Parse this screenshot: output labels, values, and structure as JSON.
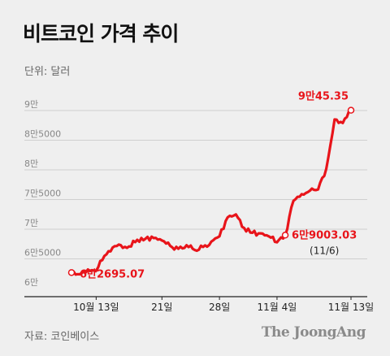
{
  "title": "비트코인 가격 추이",
  "unit_label": "단위: 달러",
  "source": "자료: 코인베이스",
  "brand": "The JoongAng",
  "colors": {
    "line": "#e8141a",
    "annotation": "#e8141a",
    "grid": "#cfcfcf",
    "background": "#efefef"
  },
  "chart_data": {
    "type": "line",
    "title": "비트코인 가격 추이",
    "ylabel": "단위: 달러",
    "ylim": [
      60000,
      90000
    ],
    "y_ticks": [
      {
        "value": 90000,
        "label": "9만"
      },
      {
        "value": 85000,
        "label": "8만5000"
      },
      {
        "value": 80000,
        "label": "8만"
      },
      {
        "value": 75000,
        "label": "7만5000"
      },
      {
        "value": 70000,
        "label": "7만"
      },
      {
        "value": 65000,
        "label": "6만5000"
      },
      {
        "value": 60000,
        "label": "6만"
      }
    ],
    "x_ticks": [
      {
        "date": "2024-10-13",
        "label": "10월 13일"
      },
      {
        "date": "2024-10-21",
        "label": "21일"
      },
      {
        "date": "2024-10-28",
        "label": "28일"
      },
      {
        "date": "2024-11-04",
        "label": "11월 4일"
      },
      {
        "date": "2024-11-13",
        "label": "11월 13일"
      }
    ],
    "xlim": [
      "2024-10-10",
      "2024-11-13"
    ],
    "grid": true,
    "series": [
      {
        "points": [
          [
            "2024-10-10",
            62695.07
          ],
          [
            "2024-10-11",
            62400
          ],
          [
            "2024-10-12",
            63200
          ],
          [
            "2024-10-13",
            63000
          ],
          [
            "2024-10-14",
            65500
          ],
          [
            "2024-10-15",
            66900
          ],
          [
            "2024-10-16",
            67300
          ],
          [
            "2024-10-17",
            67100
          ],
          [
            "2024-10-18",
            68200
          ],
          [
            "2024-10-19",
            68400
          ],
          [
            "2024-10-20",
            68500
          ],
          [
            "2024-10-21",
            68100
          ],
          [
            "2024-10-22",
            67200
          ],
          [
            "2024-10-23",
            66700
          ],
          [
            "2024-10-24",
            67300
          ],
          [
            "2024-10-25",
            66500
          ],
          [
            "2024-10-26",
            67000
          ],
          [
            "2024-10-27",
            67900
          ],
          [
            "2024-10-28",
            68800
          ],
          [
            "2024-10-29",
            72000
          ],
          [
            "2024-10-30",
            72500
          ],
          [
            "2024-10-31",
            70200
          ],
          [
            "2024-11-01",
            69400
          ],
          [
            "2024-11-02",
            69300
          ],
          [
            "2024-11-03",
            68800
          ],
          [
            "2024-11-04",
            67800
          ],
          [
            "2024-11-05",
            69003.03
          ],
          [
            "2024-11-06",
            74800
          ],
          [
            "2024-11-07",
            75900
          ],
          [
            "2024-11-08",
            76500
          ],
          [
            "2024-11-09",
            76700
          ],
          [
            "2024-11-10",
            80200
          ],
          [
            "2024-11-11",
            88500
          ],
          [
            "2024-11-12",
            87900
          ],
          [
            "2024-11-13",
            90045.35
          ]
        ]
      }
    ],
    "annotations": [
      {
        "date": "2024-10-10",
        "value": 62695.07,
        "text": "6만2695.07"
      },
      {
        "date": "2024-11-05",
        "value": 69003.03,
        "text": "6만9003.03",
        "subtext": "(11/6)"
      },
      {
        "date": "2024-11-13",
        "value": 90045.35,
        "text": "9만45.35"
      }
    ]
  }
}
